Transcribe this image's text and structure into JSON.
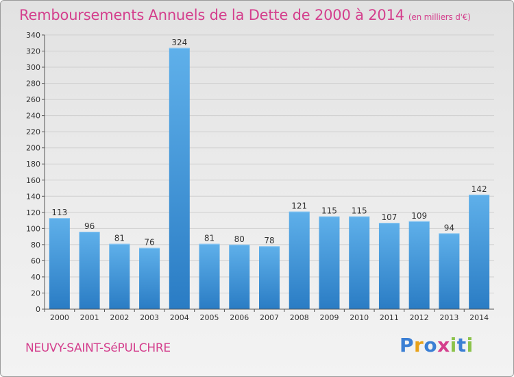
{
  "title": "Remboursements Annuels de la Dette de 2000 à 2014",
  "title_unit": "(en milliers d'€)",
  "commune": "NEUVY-SAINT-SéPULCHRE",
  "brand": {
    "text": "Proxiti",
    "letter_colors": [
      "#3b7fd4",
      "#e8a21a",
      "#3b7fd4",
      "#d43f8d",
      "#8bc34a",
      "#3b7fd4",
      "#8bc34a"
    ]
  },
  "colors": {
    "title": "#d43f8d",
    "bar_top": "#5fb0ea",
    "bar_bottom": "#2a7cc4"
  },
  "chart_data": {
    "type": "bar",
    "categories": [
      "2000",
      "2001",
      "2002",
      "2003",
      "2004",
      "2005",
      "2006",
      "2007",
      "2008",
      "2009",
      "2010",
      "2011",
      "2012",
      "2013",
      "2014"
    ],
    "values": [
      113,
      96,
      81,
      76,
      324,
      81,
      80,
      78,
      121,
      115,
      115,
      107,
      109,
      94,
      142
    ],
    "ylim": [
      0,
      340
    ],
    "yticks": [
      0,
      20,
      40,
      60,
      80,
      100,
      120,
      140,
      160,
      180,
      200,
      220,
      240,
      260,
      280,
      300,
      320,
      340
    ],
    "grid": true
  }
}
